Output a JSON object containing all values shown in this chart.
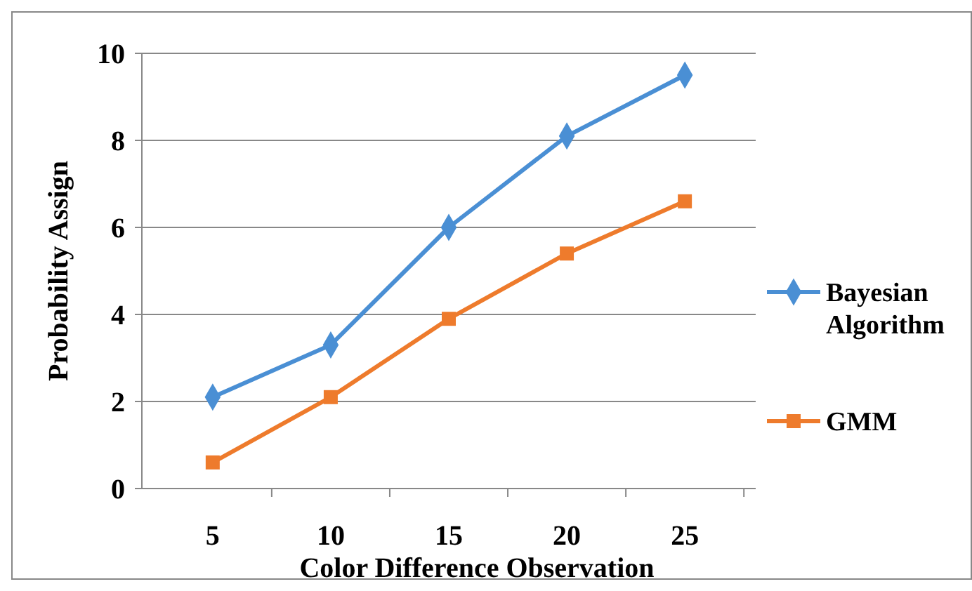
{
  "chart_data": {
    "type": "line",
    "xlabel": "Color Difference Observation",
    "ylabel": "Probability Assign",
    "categories": [
      "5",
      "10",
      "15",
      "20",
      "25"
    ],
    "series": [
      {
        "name": "Bayesian Algorithm",
        "color": "#4a8fd4",
        "marker": "diamond",
        "values": [
          2.1,
          3.3,
          6.0,
          8.1,
          9.5
        ]
      },
      {
        "name": "GMM",
        "color": "#ee7b2c",
        "marker": "square",
        "values": [
          0.6,
          2.1,
          3.9,
          5.4,
          6.6
        ]
      }
    ],
    "ylim": [
      0,
      10
    ],
    "yticks": [
      0,
      2,
      4,
      6,
      8,
      10
    ],
    "grid": "y",
    "legend": "right"
  }
}
